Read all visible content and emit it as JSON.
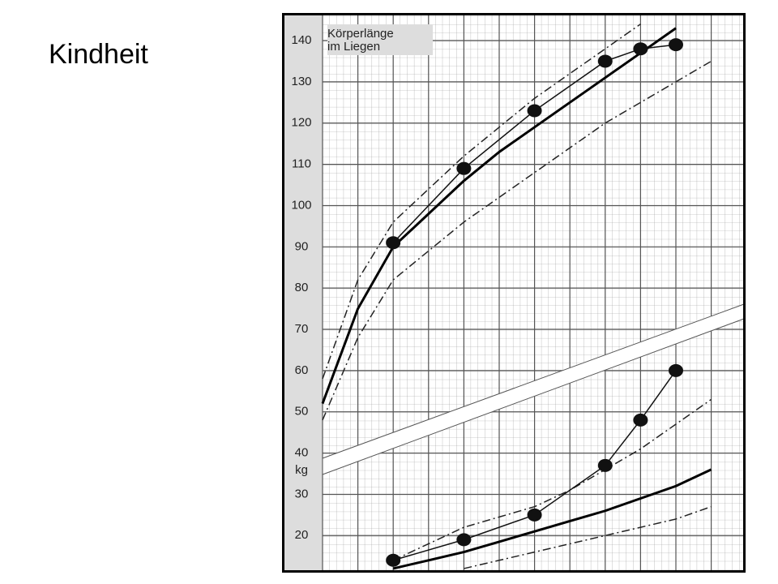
{
  "slide_title": "Kindheit",
  "chart_data": {
    "type": "line",
    "title_lines": [
      "Körperlänge",
      "im Liegen"
    ],
    "unit_label": "kg",
    "categories": [
      null,
      null,
      null,
      null,
      null,
      null,
      null,
      null,
      null,
      null,
      null,
      null
    ],
    "ylim": [
      11.4,
      146.3
    ],
    "yticks": [
      20,
      30,
      40,
      50,
      60,
      70,
      80,
      90,
      100,
      110,
      120,
      130,
      140
    ],
    "grid": true,
    "series": [
      {
        "style": "dashdot",
        "color": "#222",
        "values": [
          58,
          82,
          96,
          104,
          112,
          119,
          126,
          132,
          138,
          144,
          null,
          null
        ]
      },
      {
        "style": "thick",
        "color": "#000",
        "values": [
          52,
          75,
          90,
          98,
          106,
          113,
          119,
          125,
          131,
          137,
          143,
          null
        ]
      },
      {
        "style": "dashdot",
        "color": "#222",
        "values": [
          48,
          68,
          82,
          89,
          96,
          102,
          108,
          114,
          120,
          125,
          130,
          135
        ]
      },
      {
        "style": "dashdot",
        "color": "#222",
        "values": [
          null,
          null,
          14,
          18,
          22,
          24.5,
          27,
          31,
          36,
          41,
          47,
          53
        ]
      },
      {
        "style": "thick",
        "color": "#000",
        "values": [
          null,
          null,
          12,
          14,
          16,
          18.5,
          21,
          23.5,
          26,
          29,
          32,
          36
        ]
      },
      {
        "style": "dashdot",
        "color": "#222",
        "values": [
          null,
          null,
          null,
          null,
          12,
          14,
          16,
          18,
          20,
          22,
          24,
          27
        ]
      },
      {
        "style": "points",
        "color": "#111",
        "values": [
          null,
          null,
          91,
          null,
          109,
          null,
          123,
          null,
          135,
          138,
          139,
          null
        ]
      },
      {
        "style": "points",
        "color": "#111",
        "values": [
          null,
          null,
          14,
          null,
          19,
          null,
          25,
          null,
          37,
          48,
          60,
          null
        ]
      }
    ]
  }
}
